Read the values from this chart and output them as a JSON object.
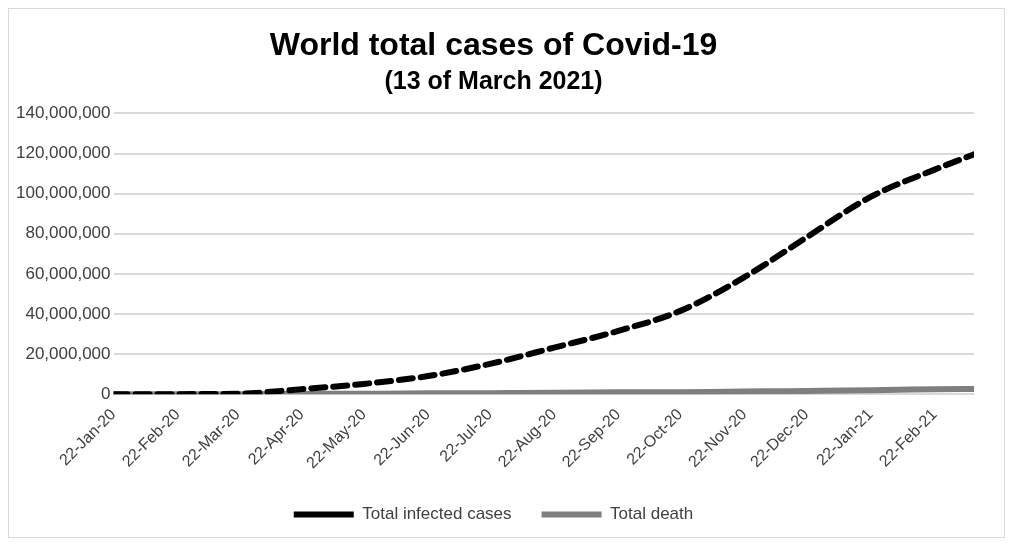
{
  "chart_data": {
    "type": "line",
    "title": "World total cases of Covid-19",
    "subtitle": "(13 of March 2021)",
    "x": [
      "2020-01-22",
      "2020-02-22",
      "2020-03-22",
      "2020-04-22",
      "2020-05-22",
      "2020-06-22",
      "2020-07-22",
      "2020-08-22",
      "2020-09-22",
      "2020-10-22",
      "2020-11-22",
      "2020-12-22",
      "2021-01-22",
      "2021-02-22",
      "2021-03-13"
    ],
    "series": [
      {
        "name": "Total infected cases",
        "color": "#000000",
        "line_style": "dashed",
        "values": [
          0,
          100000,
          300000,
          2600000,
          5200000,
          9100000,
          15200000,
          23300000,
          31600000,
          41600000,
          58400000,
          78200000,
          98400000,
          112000000,
          119600000
        ]
      },
      {
        "name": "Total death",
        "color": "#7f7f7f",
        "line_style": "solid",
        "values": [
          0,
          0,
          0,
          200000,
          300000,
          500000,
          600000,
          800000,
          1000000,
          1100000,
          1400000,
          1700000,
          2100000,
          2500000,
          2700000
        ]
      }
    ],
    "xlim": [
      "2020-01-22",
      "2021-03-13"
    ],
    "xticks": [
      {
        "value": "2020-01-22",
        "label": "22-Jan-20"
      },
      {
        "value": "2020-02-22",
        "label": "22-Feb-20"
      },
      {
        "value": "2020-03-22",
        "label": "22-Mar-20"
      },
      {
        "value": "2020-04-22",
        "label": "22-Apr-20"
      },
      {
        "value": "2020-05-22",
        "label": "22-May-20"
      },
      {
        "value": "2020-06-22",
        "label": "22-Jun-20"
      },
      {
        "value": "2020-07-22",
        "label": "22-Jul-20"
      },
      {
        "value": "2020-08-22",
        "label": "22-Aug-20"
      },
      {
        "value": "2020-09-22",
        "label": "22-Sep-20"
      },
      {
        "value": "2020-10-22",
        "label": "22-Oct-20"
      },
      {
        "value": "2020-11-22",
        "label": "22-Nov-20"
      },
      {
        "value": "2020-12-22",
        "label": "22-Dec-20"
      },
      {
        "value": "2021-01-22",
        "label": "22-Jan-21"
      },
      {
        "value": "2021-02-22",
        "label": "22-Feb-21"
      }
    ],
    "ylim": [
      0,
      140000000
    ],
    "yticks": [
      {
        "value": 0,
        "label": "0"
      },
      {
        "value": 20000000,
        "label": "20,000,000"
      },
      {
        "value": 40000000,
        "label": "40,000,000"
      },
      {
        "value": 60000000,
        "label": "60,000,000"
      },
      {
        "value": 80000000,
        "label": "80,000,000"
      },
      {
        "value": 100000000,
        "label": "100,000,000"
      },
      {
        "value": 120000000,
        "label": "120,000,000"
      },
      {
        "value": 140000000,
        "label": "140,000,000"
      }
    ],
    "grid": "y",
    "legend": "bottom",
    "marker": "none"
  }
}
